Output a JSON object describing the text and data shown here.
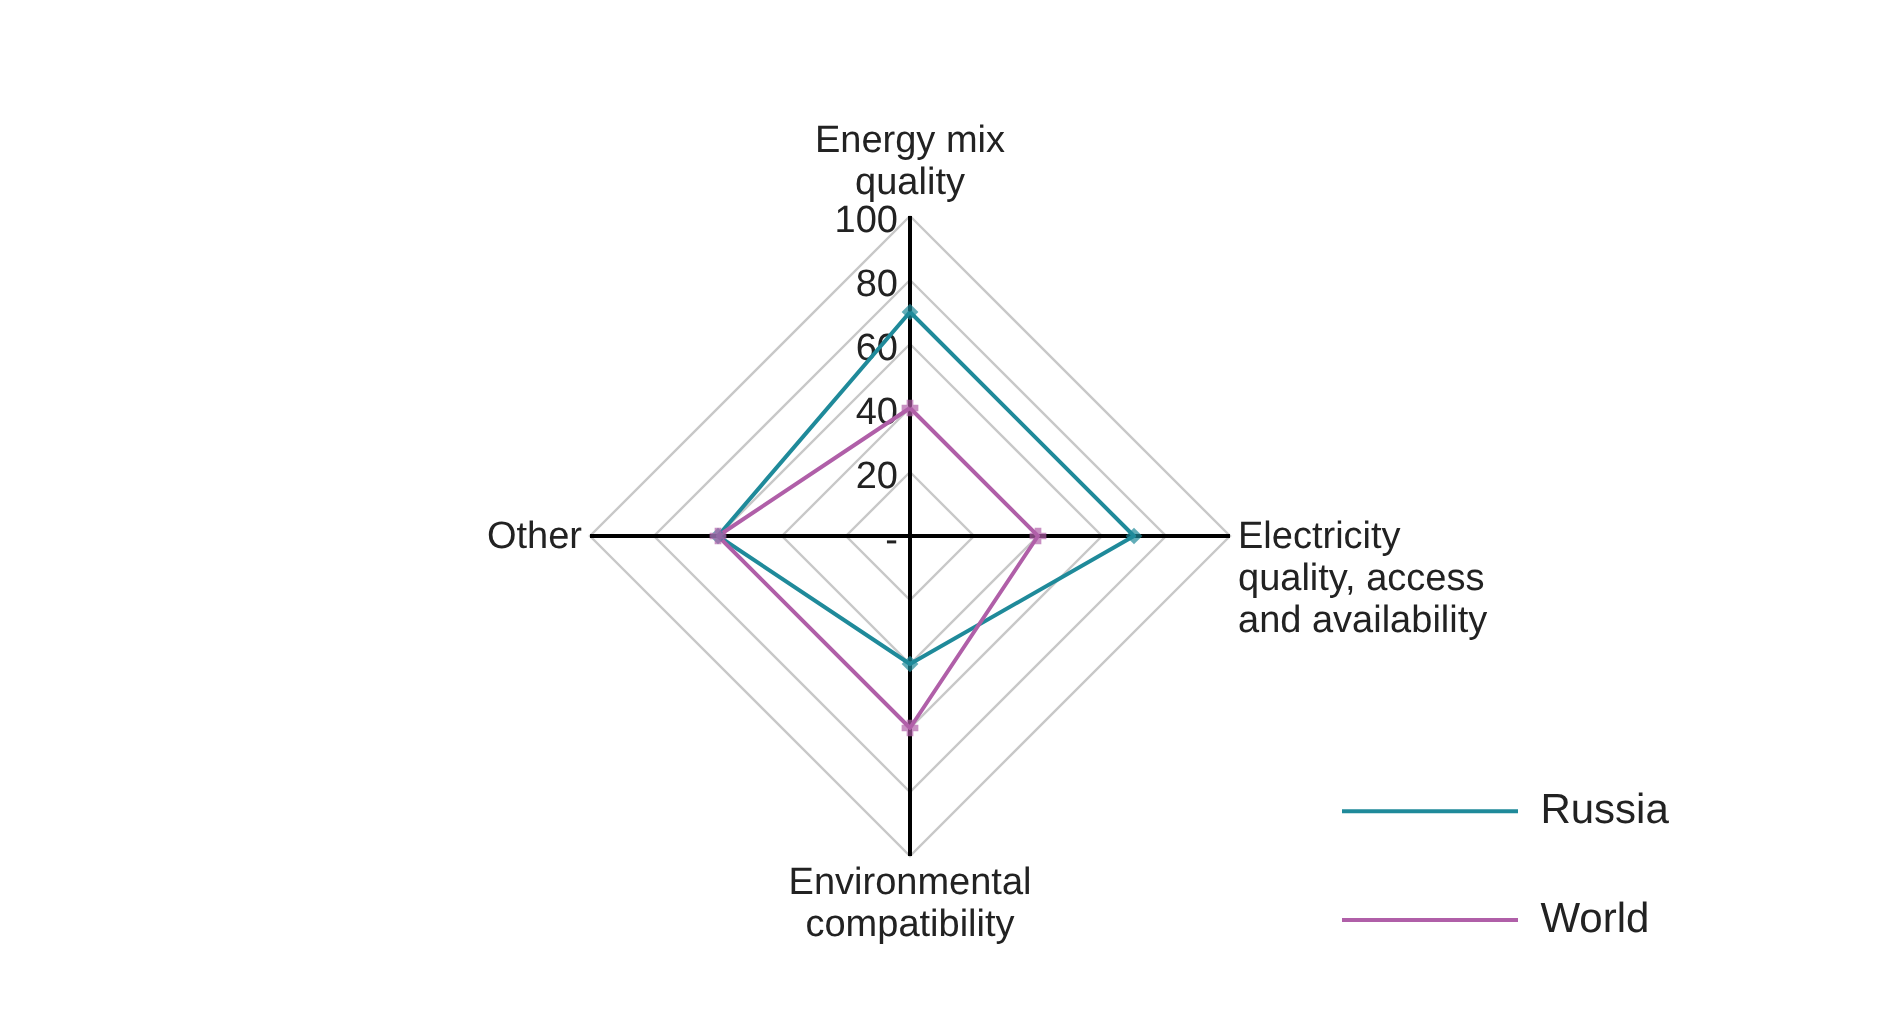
{
  "chart_data": {
    "type": "radar",
    "categories": [
      "Energy mix quality",
      "Electricity quality, access and availability",
      "Environmental compatibility",
      "Other"
    ],
    "series": [
      {
        "name": "Russia",
        "color": "#1f8a9a",
        "marker": "diamond",
        "values": [
          70,
          70,
          40,
          60
        ]
      },
      {
        "name": "World",
        "color": "#b05fa8",
        "marker": "cross",
        "values": [
          40,
          40,
          60,
          60
        ]
      }
    ],
    "ylim": [
      0,
      100
    ],
    "yticks": [
      {
        "value": 0,
        "label": "-"
      },
      20,
      40,
      60,
      80,
      100
    ],
    "grid": true,
    "legend": "bottom right"
  }
}
